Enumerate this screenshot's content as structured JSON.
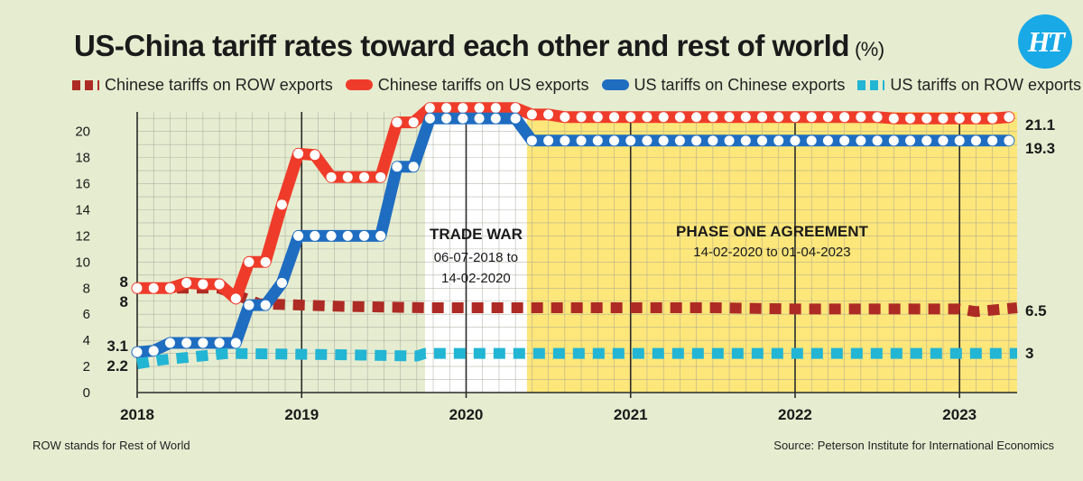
{
  "header": {
    "title": "US-China tariff rates toward each other and rest of world",
    "unit": "(%)",
    "logo_text": "HT"
  },
  "footnote": "ROW stands for Rest of World",
  "source": "Source: Peterson Institute for International Economics",
  "colors": {
    "background": "#e6ecd0",
    "grid": "#9ea295",
    "row_china": "#ad2b24",
    "china_us": "#ef3c2a",
    "us_china": "#1f6dc1",
    "us_row": "#22b5d4",
    "trade_war_band": "#ffffff",
    "phase_one_band": "#fde67a"
  },
  "chart_data": {
    "type": "line",
    "title": "US-China tariff rates toward each other and rest of world",
    "ylabel": "(%)",
    "xlabel": "",
    "ylim": [
      0,
      21.5
    ],
    "xlim": [
      2018.0,
      2023.35
    ],
    "yticks": [
      0,
      2,
      4,
      6,
      8,
      10,
      12,
      14,
      16,
      18,
      20
    ],
    "xticks": [
      {
        "value": 2018.0,
        "label": "2018"
      },
      {
        "value": 2019.0,
        "label": "2019"
      },
      {
        "value": 2020.0,
        "label": "2020"
      },
      {
        "value": 2021.0,
        "label": "2021"
      },
      {
        "value": 2022.0,
        "label": "2022"
      },
      {
        "value": 2023.0,
        "label": "2023"
      }
    ],
    "grid": true,
    "legend_position": "top",
    "bands": [
      {
        "label": "TRADE WAR",
        "sublabel": "06-07-2018 to 14-02-2020",
        "x": [
          2019.75,
          2020.37
        ],
        "color": "#ffffff"
      },
      {
        "label": "PHASE ONE AGREEMENT",
        "sublabel": "14-02-2020 to 01-04-2023",
        "x": [
          2020.37,
          2023.35
        ],
        "color": "#fde67a"
      }
    ],
    "series": [
      {
        "name": "Chinese tariffs on ROW exports",
        "color": "#ad2b24",
        "style": "dashed",
        "x": [
          2018.0,
          2018.5,
          2018.74,
          2019.25,
          2019.75,
          2020.37,
          2021.0,
          2021.5,
          2022.0,
          2022.5,
          2023.0,
          2023.1,
          2023.35
        ],
        "values": [
          8,
          8,
          6.8,
          6.6,
          6.5,
          6.5,
          6.5,
          6.5,
          6.4,
          6.4,
          6.4,
          6.2,
          6.5
        ],
        "start_label": "8",
        "end_label": "6.5"
      },
      {
        "name": "Chinese tariffs on US exports",
        "color": "#ef3c2a",
        "style": "solid-markers",
        "x": [
          2018.0,
          2018.1,
          2018.2,
          2018.3,
          2018.4,
          2018.5,
          2018.6,
          2018.68,
          2018.78,
          2018.88,
          2018.98,
          2019.08,
          2019.18,
          2019.28,
          2019.38,
          2019.48,
          2019.58,
          2019.68,
          2019.78,
          2019.88,
          2019.98,
          2020.08,
          2020.18,
          2020.3,
          2020.4,
          2020.5,
          2020.6,
          2020.7,
          2020.8,
          2020.9,
          2021.0,
          2021.1,
          2021.2,
          2021.3,
          2021.4,
          2021.5,
          2021.6,
          2021.7,
          2021.8,
          2021.9,
          2022.0,
          2022.1,
          2022.2,
          2022.3,
          2022.4,
          2022.5,
          2022.6,
          2022.7,
          2022.8,
          2022.9,
          2023.0,
          2023.1,
          2023.2,
          2023.3
        ],
        "values": [
          8,
          8,
          8,
          8.4,
          8.3,
          8.3,
          7.2,
          10.0,
          10.0,
          14.4,
          18.3,
          18.2,
          16.5,
          16.5,
          16.5,
          16.5,
          20.7,
          20.7,
          21.8,
          21.8,
          21.8,
          21.8,
          21.8,
          21.8,
          21.3,
          21.3,
          21.1,
          21.1,
          21.1,
          21.1,
          21.1,
          21.1,
          21.1,
          21.1,
          21.1,
          21.1,
          21.1,
          21.1,
          21.1,
          21.1,
          21.1,
          21.1,
          21.1,
          21.1,
          21.1,
          21.1,
          21.0,
          21.0,
          21.0,
          21.0,
          21.0,
          21.0,
          21.0,
          21.1
        ],
        "start_label": "8",
        "end_label": "21.1"
      },
      {
        "name": "US tariffs on Chinese exports",
        "color": "#1f6dc1",
        "style": "solid-markers",
        "x": [
          2018.0,
          2018.1,
          2018.2,
          2018.3,
          2018.4,
          2018.5,
          2018.6,
          2018.68,
          2018.78,
          2018.88,
          2018.98,
          2019.08,
          2019.18,
          2019.28,
          2019.38,
          2019.48,
          2019.58,
          2019.68,
          2019.78,
          2019.88,
          2019.98,
          2020.08,
          2020.18,
          2020.3,
          2020.4,
          2020.5,
          2020.6,
          2020.7,
          2020.8,
          2020.9,
          2021.0,
          2021.1,
          2021.2,
          2021.3,
          2021.4,
          2021.5,
          2021.6,
          2021.7,
          2021.8,
          2021.9,
          2022.0,
          2022.1,
          2022.2,
          2022.3,
          2022.4,
          2022.5,
          2022.6,
          2022.7,
          2022.8,
          2022.9,
          2023.0,
          2023.1,
          2023.2,
          2023.3
        ],
        "values": [
          3.1,
          3.2,
          3.8,
          3.8,
          3.8,
          3.8,
          3.8,
          6.7,
          6.7,
          8.4,
          12.0,
          12.0,
          12.0,
          12.0,
          12.0,
          12.0,
          17.3,
          17.3,
          21.0,
          21.0,
          21.0,
          21.0,
          21.0,
          21.0,
          19.3,
          19.3,
          19.3,
          19.3,
          19.3,
          19.3,
          19.3,
          19.3,
          19.3,
          19.3,
          19.3,
          19.3,
          19.3,
          19.3,
          19.3,
          19.3,
          19.3,
          19.3,
          19.3,
          19.3,
          19.3,
          19.3,
          19.3,
          19.3,
          19.3,
          19.3,
          19.3,
          19.3,
          19.3,
          19.3
        ],
        "start_label": "3.1",
        "end_label": "19.3"
      },
      {
        "name": "US tariffs on ROW exports",
        "color": "#22b5d4",
        "style": "dashed",
        "x": [
          2018.0,
          2018.15,
          2018.55,
          2019.25,
          2019.7,
          2019.75,
          2020.37,
          2021.0,
          2022.0,
          2023.0,
          2023.35
        ],
        "values": [
          2.2,
          2.5,
          3.0,
          2.9,
          2.8,
          3.0,
          3.0,
          3.0,
          3.0,
          3.0,
          3.0
        ],
        "start_label": "2.2",
        "end_label": "3"
      }
    ]
  }
}
